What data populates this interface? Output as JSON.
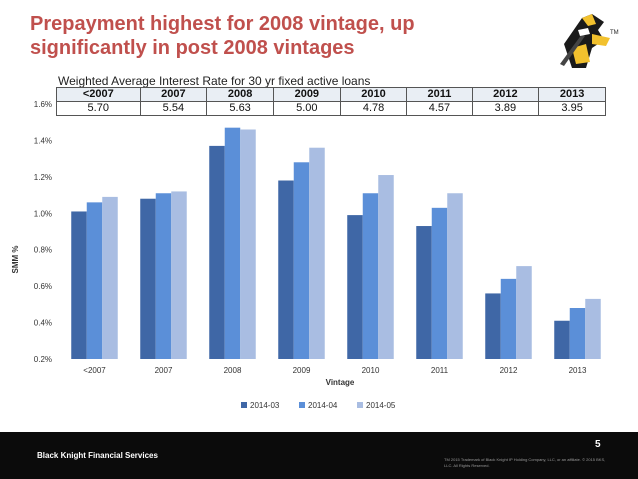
{
  "slide": {
    "title": "Prepayment highest for 2008 vintage, up significantly in post 2008 vintages",
    "company": "Black Knight Financial Services",
    "page_number": "5",
    "legal": "TM 2015 Trademark of Black Knight IP Holding Company, LLC, or an affiliate. © 2015 BKS, LLC. All Rights Reserved.",
    "logo_tm": "TM"
  },
  "rate_table": {
    "caption": "Weighted Average Interest Rate for 30 yr fixed active loans",
    "headers": [
      "<2007",
      "2007",
      "2008",
      "2009",
      "2010",
      "2011",
      "2012",
      "2013"
    ],
    "values": [
      "5.70",
      "5.54",
      "5.63",
      "5.00",
      "4.78",
      "4.57",
      "3.89",
      "3.95"
    ]
  },
  "chart_data": {
    "type": "bar",
    "categories": [
      "<2007",
      "2007",
      "2008",
      "2009",
      "2010",
      "2011",
      "2012",
      "2013"
    ],
    "series": [
      {
        "name": "2014-03",
        "color": "#3f67a6",
        "values": [
          1.01,
          1.08,
          1.37,
          1.18,
          0.99,
          0.93,
          0.56,
          0.41
        ]
      },
      {
        "name": "2014-04",
        "color": "#5b8fd8",
        "values": [
          1.06,
          1.11,
          1.47,
          1.28,
          1.11,
          1.03,
          0.64,
          0.48
        ]
      },
      {
        "name": "2014-05",
        "color": "#a9bde2",
        "values": [
          1.09,
          1.12,
          1.46,
          1.36,
          1.21,
          1.11,
          0.71,
          0.53
        ]
      }
    ],
    "xlabel": "Vintage",
    "ylabel": "SMM %",
    "ylim": [
      0.2,
      1.6
    ],
    "yticks": [
      "0.2%",
      "0.4%",
      "0.6%",
      "0.8%",
      "1.0%",
      "1.2%",
      "1.4%",
      "1.6%"
    ],
    "ytick_values": [
      0.2,
      0.4,
      0.6,
      0.8,
      1.0,
      1.2,
      1.4,
      1.6
    ],
    "grid": false,
    "legend_position": "bottom"
  }
}
